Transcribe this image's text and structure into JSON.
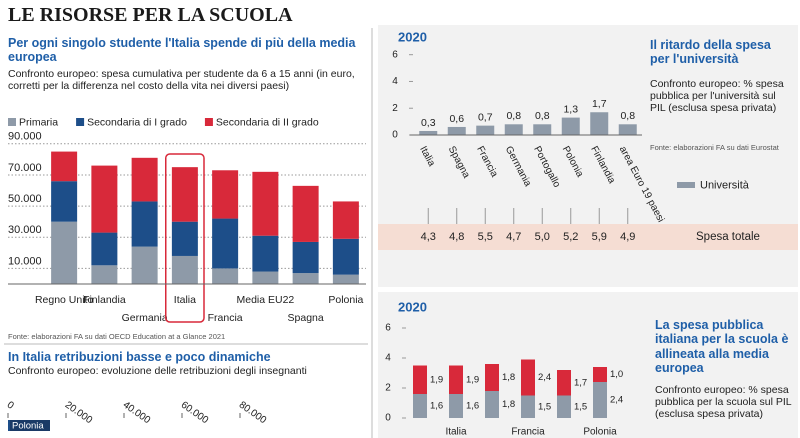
{
  "title": "LE RISORSE PER LA SCUOLA",
  "chart_data": [
    {
      "type": "stacked_bar",
      "title": "Per ogni singolo studente l'Italia spende di più della media europea",
      "subtitle": "Confronto europeo: spesa cumulativa per studente da 6 a 15 anni (in euro, corretti per la differenza nel costo della vita nei diversi paesi)",
      "source": "Fonte: elaborazioni FA su dati OECD Education at a Glance 2021",
      "categories": [
        "Regno Unito",
        "Finlandia",
        "Germania",
        "Italia",
        "Francia",
        "Media EU22",
        "Spagna",
        "Polonia"
      ],
      "series": [
        {
          "name": "Primaria",
          "color": "#8e9aa8",
          "values": [
            40000,
            12000,
            24000,
            18000,
            10000,
            8000,
            7000,
            6000
          ]
        },
        {
          "name": "Secondaria di I grado",
          "color": "#1d4e89",
          "values": [
            26000,
            21000,
            29000,
            22000,
            32000,
            23000,
            20000,
            23000
          ]
        },
        {
          "name": "Secondaria di II grado",
          "color": "#d8293a",
          "values": [
            19000,
            43000,
            28000,
            35000,
            31000,
            41000,
            36000,
            24000
          ]
        }
      ],
      "ylim": [
        0,
        95000
      ],
      "yticks": [
        {
          "value": 10000,
          "label": "10.000"
        },
        {
          "value": 30000,
          "label": "30.000"
        },
        {
          "value": 50000,
          "label": "50.000"
        },
        {
          "value": 70000,
          "label": "70.000"
        },
        {
          "value": 90000,
          "label": "90.000"
        }
      ],
      "grid": true,
      "highlight_index": 3
    },
    {
      "type": "bar",
      "year": "2020",
      "title": "Il ritardo della spesa per l'università",
      "subtitle": "Confronto europeo: % spesa pubblica per l'università sul PIL (esclusa spesa privata)",
      "source": "Fonte: elaborazioni FA su dati Eurostat",
      "categories": [
        "Italia",
        "Spagna",
        "Francia",
        "Germania",
        "Portogallo",
        "Polonia",
        "Finlandia",
        "area Euro 19 paesi"
      ],
      "series": [
        {
          "name": "Università",
          "color": "#8e9aa8",
          "values": [
            0.3,
            0.6,
            0.7,
            0.8,
            0.8,
            1.3,
            1.7,
            0.8
          ],
          "value_labels": [
            "0,3",
            "0,6",
            "0,7",
            "0,8",
            "0,8",
            "1,3",
            "1,7",
            "0,8"
          ]
        }
      ],
      "totals": {
        "name": "Spesa totale",
        "values": [
          4.3,
          4.8,
          5.5,
          4.7,
          5.0,
          5.2,
          5.9,
          4.9
        ],
        "value_labels": [
          "4,3",
          "4,8",
          "5,5",
          "4,7",
          "5,0",
          "5,2",
          "5,9",
          "4,9"
        ]
      },
      "ylim": [
        0,
        6.5
      ],
      "yticks": [
        0,
        2,
        4,
        6
      ]
    },
    {
      "type": "stacked_bar",
      "year": "2020",
      "title": "La spesa pubblica italiana per la scuola è allineata alla media europea",
      "subtitle": "Confronto europeo: % spesa pubblica per la scuola sul PIL (esclusa spesa privata)",
      "categories": [
        null,
        "Italia",
        null,
        "Francia",
        null,
        "Polonia"
      ],
      "series": [
        {
          "color": "#8e9aa8",
          "values": [
            1.6,
            1.6,
            1.8,
            1.5,
            1.5,
            2.4
          ],
          "value_labels": [
            "1,6",
            "1,6",
            "1,8",
            "1,5",
            "1,5",
            "2,4"
          ]
        },
        {
          "color": "#d8293a",
          "values": [
            1.9,
            1.9,
            1.8,
            2.4,
            1.7,
            1.0
          ],
          "value_labels": [
            "1,9",
            "1,9",
            "1,8",
            "2,4",
            "1,7",
            "1,0"
          ]
        }
      ],
      "ylim": [
        0,
        6.5
      ],
      "yticks": [
        0,
        2,
        4,
        6
      ]
    },
    {
      "type": "hbar",
      "title": "In Italia retribuzioni basse e poco dinamiche",
      "subtitle": "Confronto europeo: evoluzione delle retribuzioni degli insegnanti",
      "categories": [
        "Polonia"
      ],
      "values": [
        14000
      ],
      "color": "#1d4e89",
      "xlim": [
        0,
        80000
      ],
      "xticks": [
        0,
        {
          "value": 20000,
          "label": "20.000"
        },
        {
          "value": 40000,
          "label": "40.000"
        },
        {
          "value": 60000,
          "label": "60.000"
        },
        {
          "value": 80000,
          "label": "80.000"
        }
      ]
    }
  ]
}
